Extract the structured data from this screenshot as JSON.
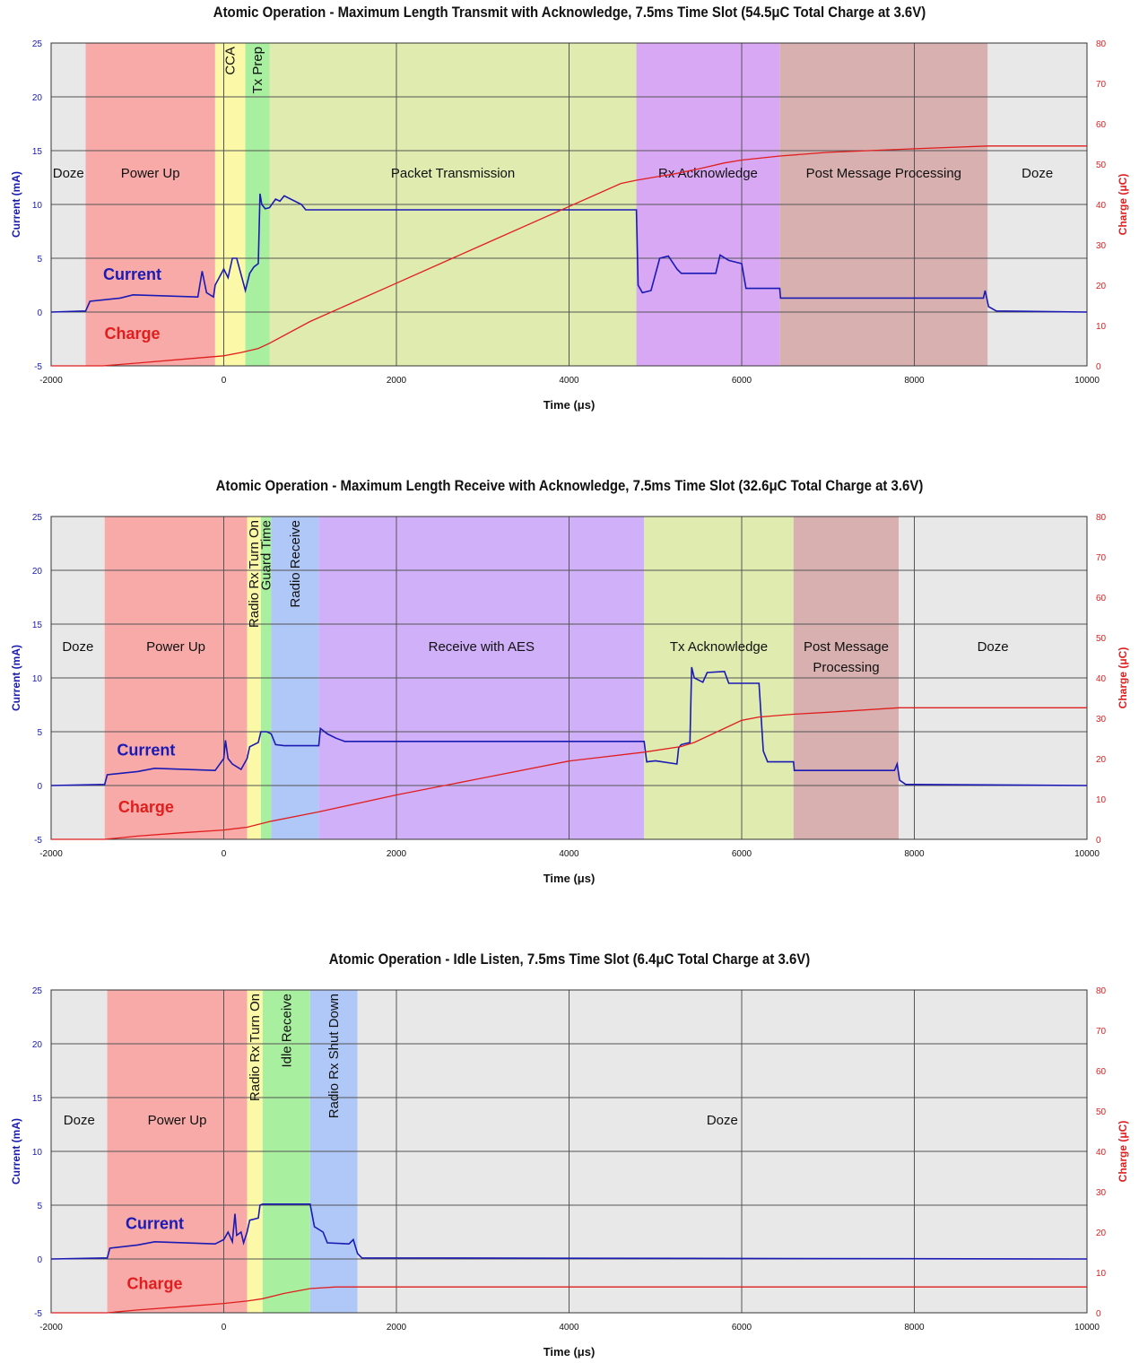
{
  "chart_data": [
    {
      "type": "line",
      "title": "Atomic Operation - Maximum Length Transmit with Acknowledge, 7.5ms Time Slot (54.5μC Total Charge at 3.6V)",
      "xlabel": "Time (μs)",
      "ylabel": "Current (mA)",
      "y2label": "Charge (μC)",
      "xlim": [
        -2000,
        10000
      ],
      "ylim": [
        -5,
        25
      ],
      "y2lim": [
        0,
        80
      ],
      "xticks": [
        -2000,
        0,
        2000,
        4000,
        6000,
        8000,
        10000
      ],
      "yticks": [
        -5,
        0,
        5,
        10,
        15,
        20,
        25
      ],
      "y2ticks": [
        0,
        10,
        20,
        30,
        40,
        50,
        60,
        70,
        80
      ],
      "grid": true,
      "phases": [
        {
          "label": "Doze",
          "start": -2000,
          "end": -1600,
          "color": "#e8e8e8"
        },
        {
          "label": "Power Up",
          "start": -1600,
          "end": -100,
          "color": "#f7aaa8"
        },
        {
          "label": "CCA",
          "start": -100,
          "end": 250,
          "color": "#fbf8a8",
          "vertical": true
        },
        {
          "label": "Tx Prep",
          "start": 250,
          "end": 530,
          "color": "#a8f0a0",
          "vertical": true
        },
        {
          "label": "Packet Transmission",
          "start": 530,
          "end": 4780,
          "color": "#e0ebb0"
        },
        {
          "label": "Rx Acknowledge",
          "start": 4780,
          "end": 6440,
          "color": "#d8a8f5"
        },
        {
          "label": "Post Message Processing",
          "start": 6440,
          "end": 8850,
          "color": "#d8b0b0"
        },
        {
          "label": "Doze",
          "start": 8850,
          "end": 10000,
          "color": "#e8e8e8"
        }
      ],
      "series": [
        {
          "name": "Current",
          "axis": "left",
          "color": "#1a1ab4",
          "x": [
            -2000,
            -1600,
            -1550,
            -1200,
            -1050,
            -300,
            -250,
            -200,
            -120,
            -100,
            0,
            50,
            100,
            150,
            250,
            300,
            350,
            400,
            420,
            440,
            480,
            530,
            600,
            650,
            700,
            900,
            950,
            4780,
            4800,
            4850,
            4950,
            5050,
            5150,
            5250,
            5300,
            5700,
            5750,
            5850,
            6000,
            6050,
            6440,
            6450,
            8800,
            8820,
            8860,
            8950,
            10000
          ],
          "y": [
            0.0,
            0.1,
            1.0,
            1.3,
            1.6,
            1.4,
            3.8,
            1.8,
            1.4,
            2.5,
            4.0,
            3.2,
            5.0,
            5.0,
            2.0,
            3.6,
            4.2,
            4.5,
            11.0,
            10.0,
            9.6,
            9.7,
            10.5,
            10.3,
            10.8,
            10.0,
            9.5,
            9.5,
            2.5,
            1.8,
            2.0,
            5.0,
            5.2,
            4.0,
            3.6,
            3.6,
            5.3,
            4.8,
            4.5,
            2.2,
            2.2,
            1.3,
            1.3,
            2.0,
            0.5,
            0.1,
            0.0
          ]
        },
        {
          "name": "Charge",
          "axis": "right",
          "color": "#e01e1e",
          "x": [
            -2000,
            -1400,
            -1000,
            -500,
            0,
            200,
            400,
            530,
            1000,
            2000,
            3000,
            4000,
            4600,
            4780,
            5000,
            5200,
            5500,
            5800,
            6000,
            6440,
            7000,
            8000,
            8850,
            10000
          ],
          "y": [
            0,
            0,
            0.7,
            1.6,
            2.5,
            3.3,
            4.3,
            5.6,
            11.0,
            20.5,
            30.0,
            39.5,
            45.2,
            46.0,
            46.8,
            47.5,
            48.8,
            50.3,
            51.0,
            52.0,
            52.9,
            53.8,
            54.5,
            54.5
          ]
        }
      ]
    },
    {
      "type": "line",
      "title": "Atomic Operation - Maximum Length Receive with Acknowledge, 7.5ms Time Slot (32.6μC Total Charge at 3.6V)",
      "xlabel": "Time (μs)",
      "ylabel": "Current (mA)",
      "y2label": "Charge (μC)",
      "xlim": [
        -2000,
        10000
      ],
      "ylim": [
        -5,
        25
      ],
      "y2lim": [
        0,
        80
      ],
      "xticks": [
        -2000,
        0,
        2000,
        4000,
        6000,
        8000,
        10000
      ],
      "yticks": [
        -5,
        0,
        5,
        10,
        15,
        20,
        25
      ],
      "y2ticks": [
        0,
        10,
        20,
        30,
        40,
        50,
        60,
        70,
        80
      ],
      "grid": true,
      "phases": [
        {
          "label": "Doze",
          "start": -2000,
          "end": -1380,
          "color": "#e8e8e8"
        },
        {
          "label": "Power Up",
          "start": -1380,
          "end": 270,
          "color": "#f7aaa8"
        },
        {
          "label": "Radio Rx Turn On",
          "start": 270,
          "end": 430,
          "color": "#fbf8a8",
          "vertical": true
        },
        {
          "label": "Guard Time",
          "start": 430,
          "end": 550,
          "color": "#a8f0a0",
          "vertical": true
        },
        {
          "label": "Radio Receive",
          "start": 550,
          "end": 1100,
          "color": "#b0c8f8",
          "vertical": true
        },
        {
          "label": "Receive with AES",
          "start": 1100,
          "end": 4870,
          "color": "#d0b0f8"
        },
        {
          "label": "Tx Acknowledge",
          "start": 4870,
          "end": 6600,
          "color": "#e0ebb0"
        },
        {
          "label": "Post Message",
          "label2": "Processing",
          "start": 6600,
          "end": 7820,
          "color": "#d8b0b0"
        },
        {
          "label": "Doze",
          "start": 7820,
          "end": 10000,
          "color": "#e8e8e8"
        }
      ],
      "series": [
        {
          "name": "Current",
          "axis": "left",
          "color": "#1a1ab4",
          "x": [
            -2000,
            -1380,
            -1350,
            -1000,
            -800,
            -100,
            0,
            20,
            50,
            100,
            200,
            270,
            300,
            400,
            430,
            500,
            550,
            600,
            700,
            1100,
            1120,
            1200,
            1300,
            1400,
            4870,
            4900,
            5000,
            5250,
            5270,
            5300,
            5400,
            5420,
            5450,
            5550,
            5600,
            5800,
            5850,
            6200,
            6250,
            6300,
            6600,
            6610,
            7770,
            7800,
            7830,
            7900,
            10000
          ],
          "y": [
            0.0,
            0.1,
            1.0,
            1.3,
            1.6,
            1.4,
            2.5,
            4.2,
            2.5,
            2.0,
            1.5,
            2.5,
            3.6,
            4.0,
            5.0,
            5.0,
            4.8,
            3.8,
            3.7,
            3.7,
            5.3,
            4.8,
            4.4,
            4.1,
            4.1,
            2.2,
            2.3,
            2.0,
            3.5,
            3.8,
            4.0,
            11.0,
            10.0,
            9.6,
            10.5,
            10.6,
            9.5,
            9.5,
            3.2,
            2.2,
            2.2,
            1.4,
            1.4,
            2.0,
            0.5,
            0.1,
            0.0
          ]
        },
        {
          "name": "Charge",
          "axis": "right",
          "color": "#e01e1e",
          "x": [
            -2000,
            -1380,
            -1000,
            -500,
            0,
            270,
            550,
            1100,
            2000,
            3000,
            4000,
            4870,
            5300,
            5450,
            6000,
            6200,
            6600,
            7000,
            7820,
            10000
          ],
          "y": [
            0,
            0,
            0.8,
            1.6,
            2.3,
            3.0,
            4.5,
            6.8,
            11.0,
            15.2,
            19.4,
            21.6,
            23.0,
            24.0,
            29.5,
            30.3,
            31.0,
            31.5,
            32.6,
            32.6
          ]
        }
      ]
    },
    {
      "type": "line",
      "title": "Atomic Operation - Idle Listen, 7.5ms Time Slot (6.4μC Total Charge at 3.6V)",
      "xlabel": "Time (μs)",
      "ylabel": "Current (mA)",
      "y2label": "Charge (μC)",
      "xlim": [
        -2000,
        10000
      ],
      "ylim": [
        -5,
        25
      ],
      "y2lim": [
        0,
        80
      ],
      "xticks": [
        -2000,
        0,
        2000,
        4000,
        6000,
        8000,
        10000
      ],
      "yticks": [
        -5,
        0,
        5,
        10,
        15,
        20,
        25
      ],
      "y2ticks": [
        0,
        10,
        20,
        30,
        40,
        50,
        60,
        70,
        80
      ],
      "grid": true,
      "phases": [
        {
          "label": "Doze",
          "start": -2000,
          "end": -1350,
          "color": "#e8e8e8"
        },
        {
          "label": "Power Up",
          "start": -1350,
          "end": 270,
          "color": "#f7aaa8"
        },
        {
          "label": "Radio Rx Turn On",
          "start": 270,
          "end": 450,
          "color": "#fbf8a8",
          "vertical": true
        },
        {
          "label": "Idle Receive",
          "start": 450,
          "end": 1000,
          "color": "#a8f0a0",
          "vertical": true
        },
        {
          "label": "Radio Rx Shut Down",
          "start": 1000,
          "end": 1550,
          "color": "#b0c8f8",
          "vertical": true
        },
        {
          "label": "Doze",
          "start": 1550,
          "end": 10000,
          "color": "#e8e8e8"
        }
      ],
      "series": [
        {
          "name": "Current",
          "axis": "left",
          "color": "#1a1ab4",
          "x": [
            -2000,
            -1350,
            -1320,
            -1000,
            -800,
            -100,
            0,
            50,
            100,
            130,
            150,
            200,
            230,
            270,
            300,
            400,
            420,
            450,
            1000,
            1050,
            1150,
            1200,
            1450,
            1500,
            1550,
            1600,
            10000
          ],
          "y": [
            0.0,
            0.1,
            1.0,
            1.3,
            1.6,
            1.4,
            1.8,
            2.5,
            1.6,
            4.2,
            2.2,
            2.5,
            1.5,
            2.5,
            3.6,
            3.8,
            5.0,
            5.1,
            5.1,
            3.0,
            2.5,
            1.5,
            1.4,
            1.8,
            0.5,
            0.1,
            0.0
          ]
        },
        {
          "name": "Charge",
          "axis": "right",
          "color": "#e01e1e",
          "x": [
            -2000,
            -1350,
            -1000,
            -500,
            0,
            270,
            450,
            700,
            1000,
            1300,
            1550,
            10000
          ],
          "y": [
            0,
            0,
            0.7,
            1.5,
            2.3,
            2.9,
            3.5,
            4.8,
            6.0,
            6.4,
            6.4,
            6.4
          ]
        }
      ]
    }
  ],
  "colors": {
    "current_axis": "#1a1ab4",
    "charge_axis": "#e01e1e",
    "gridline": "#555555"
  }
}
